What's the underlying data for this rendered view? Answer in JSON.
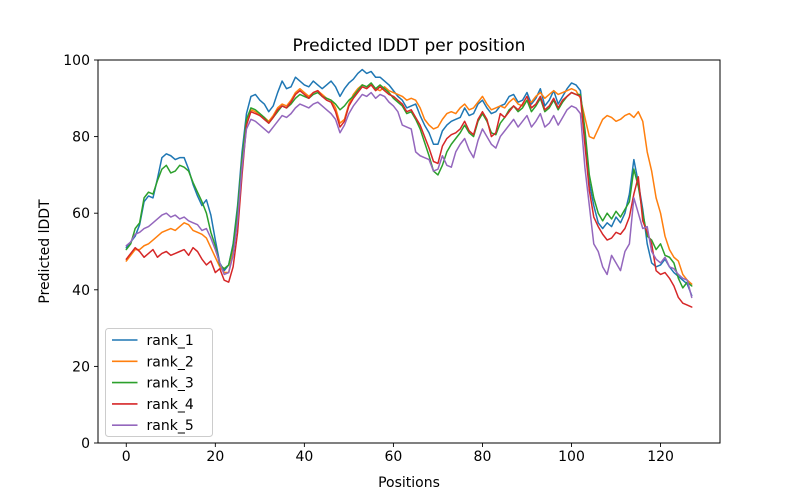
{
  "chart_data": {
    "type": "line",
    "title": "Predicted lDDT per position",
    "xlabel": "Positions",
    "ylabel": "Predicted lDDT",
    "x_range": [
      0,
      127
    ],
    "xlim": [
      -6.35,
      133.35
    ],
    "ylim": [
      0,
      100
    ],
    "x_ticks": [
      0,
      20,
      40,
      60,
      80,
      100,
      120
    ],
    "y_ticks": [
      0,
      20,
      40,
      60,
      80,
      100
    ],
    "grid": false,
    "legend_position": "lower left",
    "line_width": 1.5,
    "background_color": "#ffffff",
    "spine_color": "#000000",
    "legend_border_color": "#cccccc",
    "series": [
      {
        "name": "rank_1",
        "color": "#1f77b4",
        "values": [
          51,
          52.5,
          54,
          57,
          63,
          64.5,
          64,
          69,
          74.5,
          75.5,
          75,
          74,
          74.5,
          74.5,
          71.5,
          67.5,
          64.5,
          62,
          63.5,
          59.5,
          53,
          47,
          45,
          46.5,
          52,
          62,
          76,
          86,
          90.5,
          91,
          89.5,
          88.5,
          86.5,
          88,
          91.5,
          94.5,
          92.5,
          93,
          95.5,
          94.5,
          93.5,
          93,
          94.5,
          93.5,
          92.5,
          93.5,
          94.5,
          93,
          90.5,
          92.5,
          94,
          95,
          96.5,
          97.5,
          96.5,
          97,
          95.5,
          95.5,
          94.5,
          93.5,
          92,
          90.5,
          89.5,
          87.5,
          88,
          88.5,
          85.5,
          83,
          81,
          78,
          78,
          81.5,
          83,
          84,
          84.5,
          85,
          87.5,
          85.5,
          86,
          88.5,
          89.5,
          87.5,
          86,
          86.5,
          88,
          88.5,
          90.5,
          91,
          89,
          89.5,
          91.5,
          88.5,
          90,
          92.5,
          88,
          89.5,
          92,
          88.5,
          90.5,
          92.5,
          94,
          93.5,
          92,
          80,
          68,
          62,
          57.5,
          56,
          57.5,
          56.5,
          59,
          57.5,
          60,
          65,
          74,
          68,
          61,
          52,
          47,
          46,
          46.5,
          48,
          46,
          44.5,
          43.5,
          42.5,
          41.5,
          38.5
        ]
      },
      {
        "name": "rank_2",
        "color": "#ff7f0e",
        "values": [
          47.5,
          49,
          50.5,
          50.5,
          51.5,
          52,
          53,
          54,
          55,
          55.5,
          56,
          55.5,
          56.5,
          57.5,
          57,
          55.5,
          55,
          54.5,
          53.5,
          51,
          48.5,
          46,
          44.5,
          44.5,
          50,
          60,
          74,
          84,
          87,
          86.5,
          85.5,
          85,
          84,
          85.5,
          87.5,
          88.5,
          88,
          89.5,
          91.5,
          92.5,
          91.5,
          90.5,
          91.5,
          92,
          91,
          90,
          89.5,
          87.5,
          83.5,
          84.5,
          88.5,
          91,
          92.5,
          93.5,
          93,
          93.5,
          92.5,
          92,
          93,
          92,
          91.5,
          91,
          90.5,
          89.5,
          90,
          89.5,
          87.5,
          84.5,
          83,
          82,
          82.5,
          84.5,
          86,
          86.5,
          86,
          87.5,
          88.5,
          87,
          87.5,
          89,
          90.5,
          88.5,
          87,
          87.5,
          88,
          87.5,
          89,
          90,
          88.5,
          88,
          89.5,
          89,
          90.5,
          91.5,
          90,
          91,
          92,
          91,
          91.5,
          92,
          92.5,
          92,
          90,
          85,
          80,
          79.5,
          82,
          84.5,
          85.5,
          85,
          84,
          84.5,
          85.5,
          86,
          85,
          86.5,
          84,
          76,
          71,
          64,
          60,
          54,
          50.5,
          48.5,
          47.5,
          44,
          42.5,
          41.5
        ]
      },
      {
        "name": "rank_3",
        "color": "#2ca02c",
        "values": [
          50.5,
          52,
          56,
          57.5,
          64,
          65.5,
          65,
          68.5,
          71.5,
          72.5,
          70.5,
          71,
          72.5,
          72,
          71,
          68,
          65.5,
          63,
          60,
          55,
          51.5,
          46.5,
          45.5,
          46.5,
          51.5,
          61,
          74,
          84.5,
          87.5,
          87,
          86,
          85,
          83.5,
          85,
          86.5,
          88,
          87.5,
          88.5,
          90,
          91,
          90.5,
          90,
          91,
          91.5,
          90.5,
          90,
          89.5,
          88.5,
          87,
          88,
          89.5,
          90.5,
          92,
          93.5,
          93,
          94,
          92.5,
          93.5,
          92.5,
          91.5,
          90,
          89,
          88,
          86,
          86.5,
          84.5,
          82,
          78.5,
          75,
          71,
          70,
          72.5,
          76,
          78,
          79.5,
          81,
          83,
          81,
          80,
          84,
          86,
          84,
          81,
          80.5,
          83.5,
          85,
          87,
          88,
          86.5,
          87.5,
          89.5,
          86.5,
          88,
          90,
          86.5,
          87.5,
          89.5,
          87,
          89,
          90.5,
          91.5,
          91,
          91,
          82,
          70,
          64,
          60,
          58,
          60,
          58.5,
          60.5,
          59,
          61,
          63,
          71.5,
          67,
          60,
          54,
          53,
          50.5,
          52,
          49,
          48.5,
          47,
          43,
          40.5,
          42,
          41
        ]
      },
      {
        "name": "rank_4",
        "color": "#d62728",
        "values": [
          48,
          49.5,
          51,
          50,
          48.5,
          49.5,
          50.5,
          48.5,
          49.5,
          50,
          49,
          49.5,
          50,
          50.5,
          49,
          51,
          50,
          48,
          46.5,
          47.5,
          44.5,
          45.5,
          42.5,
          42,
          46,
          55,
          70,
          83,
          86.5,
          86,
          85.5,
          84.5,
          83.5,
          85,
          87,
          88,
          87.5,
          89,
          91,
          92,
          91,
          90,
          91.5,
          92,
          90.5,
          89.5,
          89,
          86.5,
          82.5,
          84,
          88,
          90,
          91.5,
          93,
          92.5,
          93.5,
          92,
          93,
          92,
          91,
          90.5,
          89.5,
          88.5,
          86.5,
          87,
          85,
          83,
          80,
          77,
          73.5,
          73,
          77.5,
          79.5,
          80.5,
          81,
          82,
          84,
          81.5,
          80.5,
          84.5,
          86.5,
          84.5,
          80,
          81,
          86,
          85,
          86.5,
          88,
          87,
          88.5,
          90.5,
          87.5,
          88.5,
          90.5,
          87,
          88,
          90,
          87.5,
          89.5,
          90.5,
          91.5,
          91,
          90.5,
          78,
          66,
          59,
          56.5,
          54.5,
          53,
          53.5,
          55,
          54.5,
          56,
          59,
          65,
          69.5,
          58,
          55,
          52,
          45,
          44,
          44.5,
          43,
          41,
          38,
          36.5,
          36,
          35.5
        ]
      },
      {
        "name": "rank_5",
        "color": "#9467bd",
        "values": [
          51.5,
          52.5,
          54.5,
          55,
          56,
          56.5,
          57.5,
          58.5,
          59.5,
          60,
          59,
          59.5,
          58.5,
          59,
          58,
          57.5,
          57,
          55.5,
          56,
          53.5,
          50.5,
          47,
          44,
          44.5,
          49,
          58,
          72,
          82,
          84.5,
          84,
          83,
          82,
          81,
          82.5,
          84,
          85.5,
          85,
          86,
          87.5,
          88.5,
          88,
          87.5,
          88.5,
          89,
          88,
          87,
          86,
          84.5,
          81,
          83,
          86,
          88,
          89.5,
          91,
          90.5,
          91.5,
          90,
          91,
          90.5,
          89,
          88,
          86.5,
          83,
          82.5,
          82,
          76,
          75,
          74.5,
          74,
          71,
          71.5,
          75,
          72.5,
          72,
          76,
          78,
          79.5,
          76.5,
          74.5,
          79,
          82,
          80,
          78,
          77,
          80,
          81.5,
          83,
          84.5,
          82.5,
          84,
          85.5,
          82.5,
          84,
          86,
          82.5,
          83.5,
          85.5,
          83,
          85,
          87,
          88,
          87.5,
          86,
          72,
          62,
          52,
          50,
          46,
          44,
          49,
          47,
          45,
          50,
          52,
          64,
          60,
          56,
          56.5,
          50,
          48,
          47,
          48.5,
          46,
          45.5,
          44,
          43,
          42.5,
          38
        ]
      }
    ],
    "legend_labels": [
      "rank_1",
      "rank_2",
      "rank_3",
      "rank_4",
      "rank_5"
    ]
  }
}
